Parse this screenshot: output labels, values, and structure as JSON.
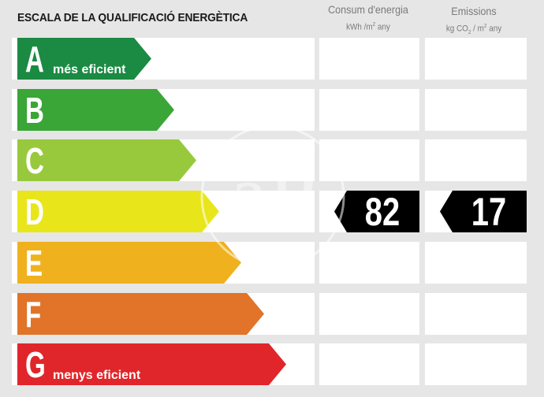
{
  "header": {
    "title": "ESCALA DE LA QUALIFICACIÓ ENERGÈTICA",
    "consumption": {
      "label": "Consum d'energia",
      "unit_prefix": "kWh /m",
      "unit_sup": "2",
      "unit_suffix": " any"
    },
    "emissions": {
      "label": "Emissions",
      "unit_prefix": "kg CO",
      "unit_sub": "2",
      "unit_mid": " / m",
      "unit_sup": "2",
      "unit_suffix": " any"
    }
  },
  "scale": [
    {
      "letter": "A",
      "caption": "més eficient",
      "color": "#1b8a43"
    },
    {
      "letter": "B",
      "caption": "",
      "color": "#3aa637"
    },
    {
      "letter": "C",
      "caption": "",
      "color": "#98c93c"
    },
    {
      "letter": "D",
      "caption": "",
      "color": "#e8e61a"
    },
    {
      "letter": "E",
      "caption": "",
      "color": "#f0b11e"
    },
    {
      "letter": "F",
      "caption": "",
      "color": "#e17428"
    },
    {
      "letter": "G",
      "caption": "menys eficient",
      "color": "#e0262a"
    }
  ],
  "rating": {
    "consumption": {
      "class": "D",
      "value": "82"
    },
    "emissions": {
      "class": "D",
      "value": "17"
    }
  },
  "watermark": {
    "text": "aP"
  }
}
